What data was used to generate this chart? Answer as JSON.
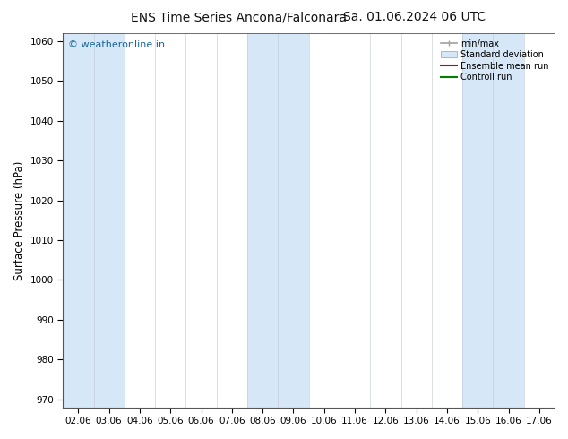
{
  "title_left": "ENS Time Series Ancona/Falconara",
  "title_right": "Sa. 01.06.2024 06 UTC",
  "ylabel": "Surface Pressure (hPa)",
  "ylim": [
    968,
    1062
  ],
  "yticks": [
    970,
    980,
    990,
    1000,
    1010,
    1020,
    1030,
    1040,
    1050,
    1060
  ],
  "x_labels": [
    "02.06",
    "03.06",
    "04.06",
    "05.06",
    "06.06",
    "07.06",
    "08.06",
    "09.06",
    "10.06",
    "11.06",
    "12.06",
    "13.06",
    "14.06",
    "15.06",
    "16.06",
    "17.06"
  ],
  "shaded_cols": [
    0,
    1,
    6,
    7,
    13,
    14
  ],
  "shade_color": "#d6e8f7",
  "background_color": "#ffffff",
  "watermark": "© weatheronline.in",
  "watermark_color": "#1a6699",
  "legend_entries": [
    "min/max",
    "Standard deviation",
    "Ensemble mean run",
    "Controll run"
  ],
  "legend_colors": [
    "#a0a0a0",
    "#c8d8e8",
    "#cc0000",
    "#008000"
  ],
  "spine_color": "#555555",
  "tick_color": "#333333",
  "title_fontsize": 10,
  "tick_fontsize": 7.5,
  "ylabel_fontsize": 8.5
}
